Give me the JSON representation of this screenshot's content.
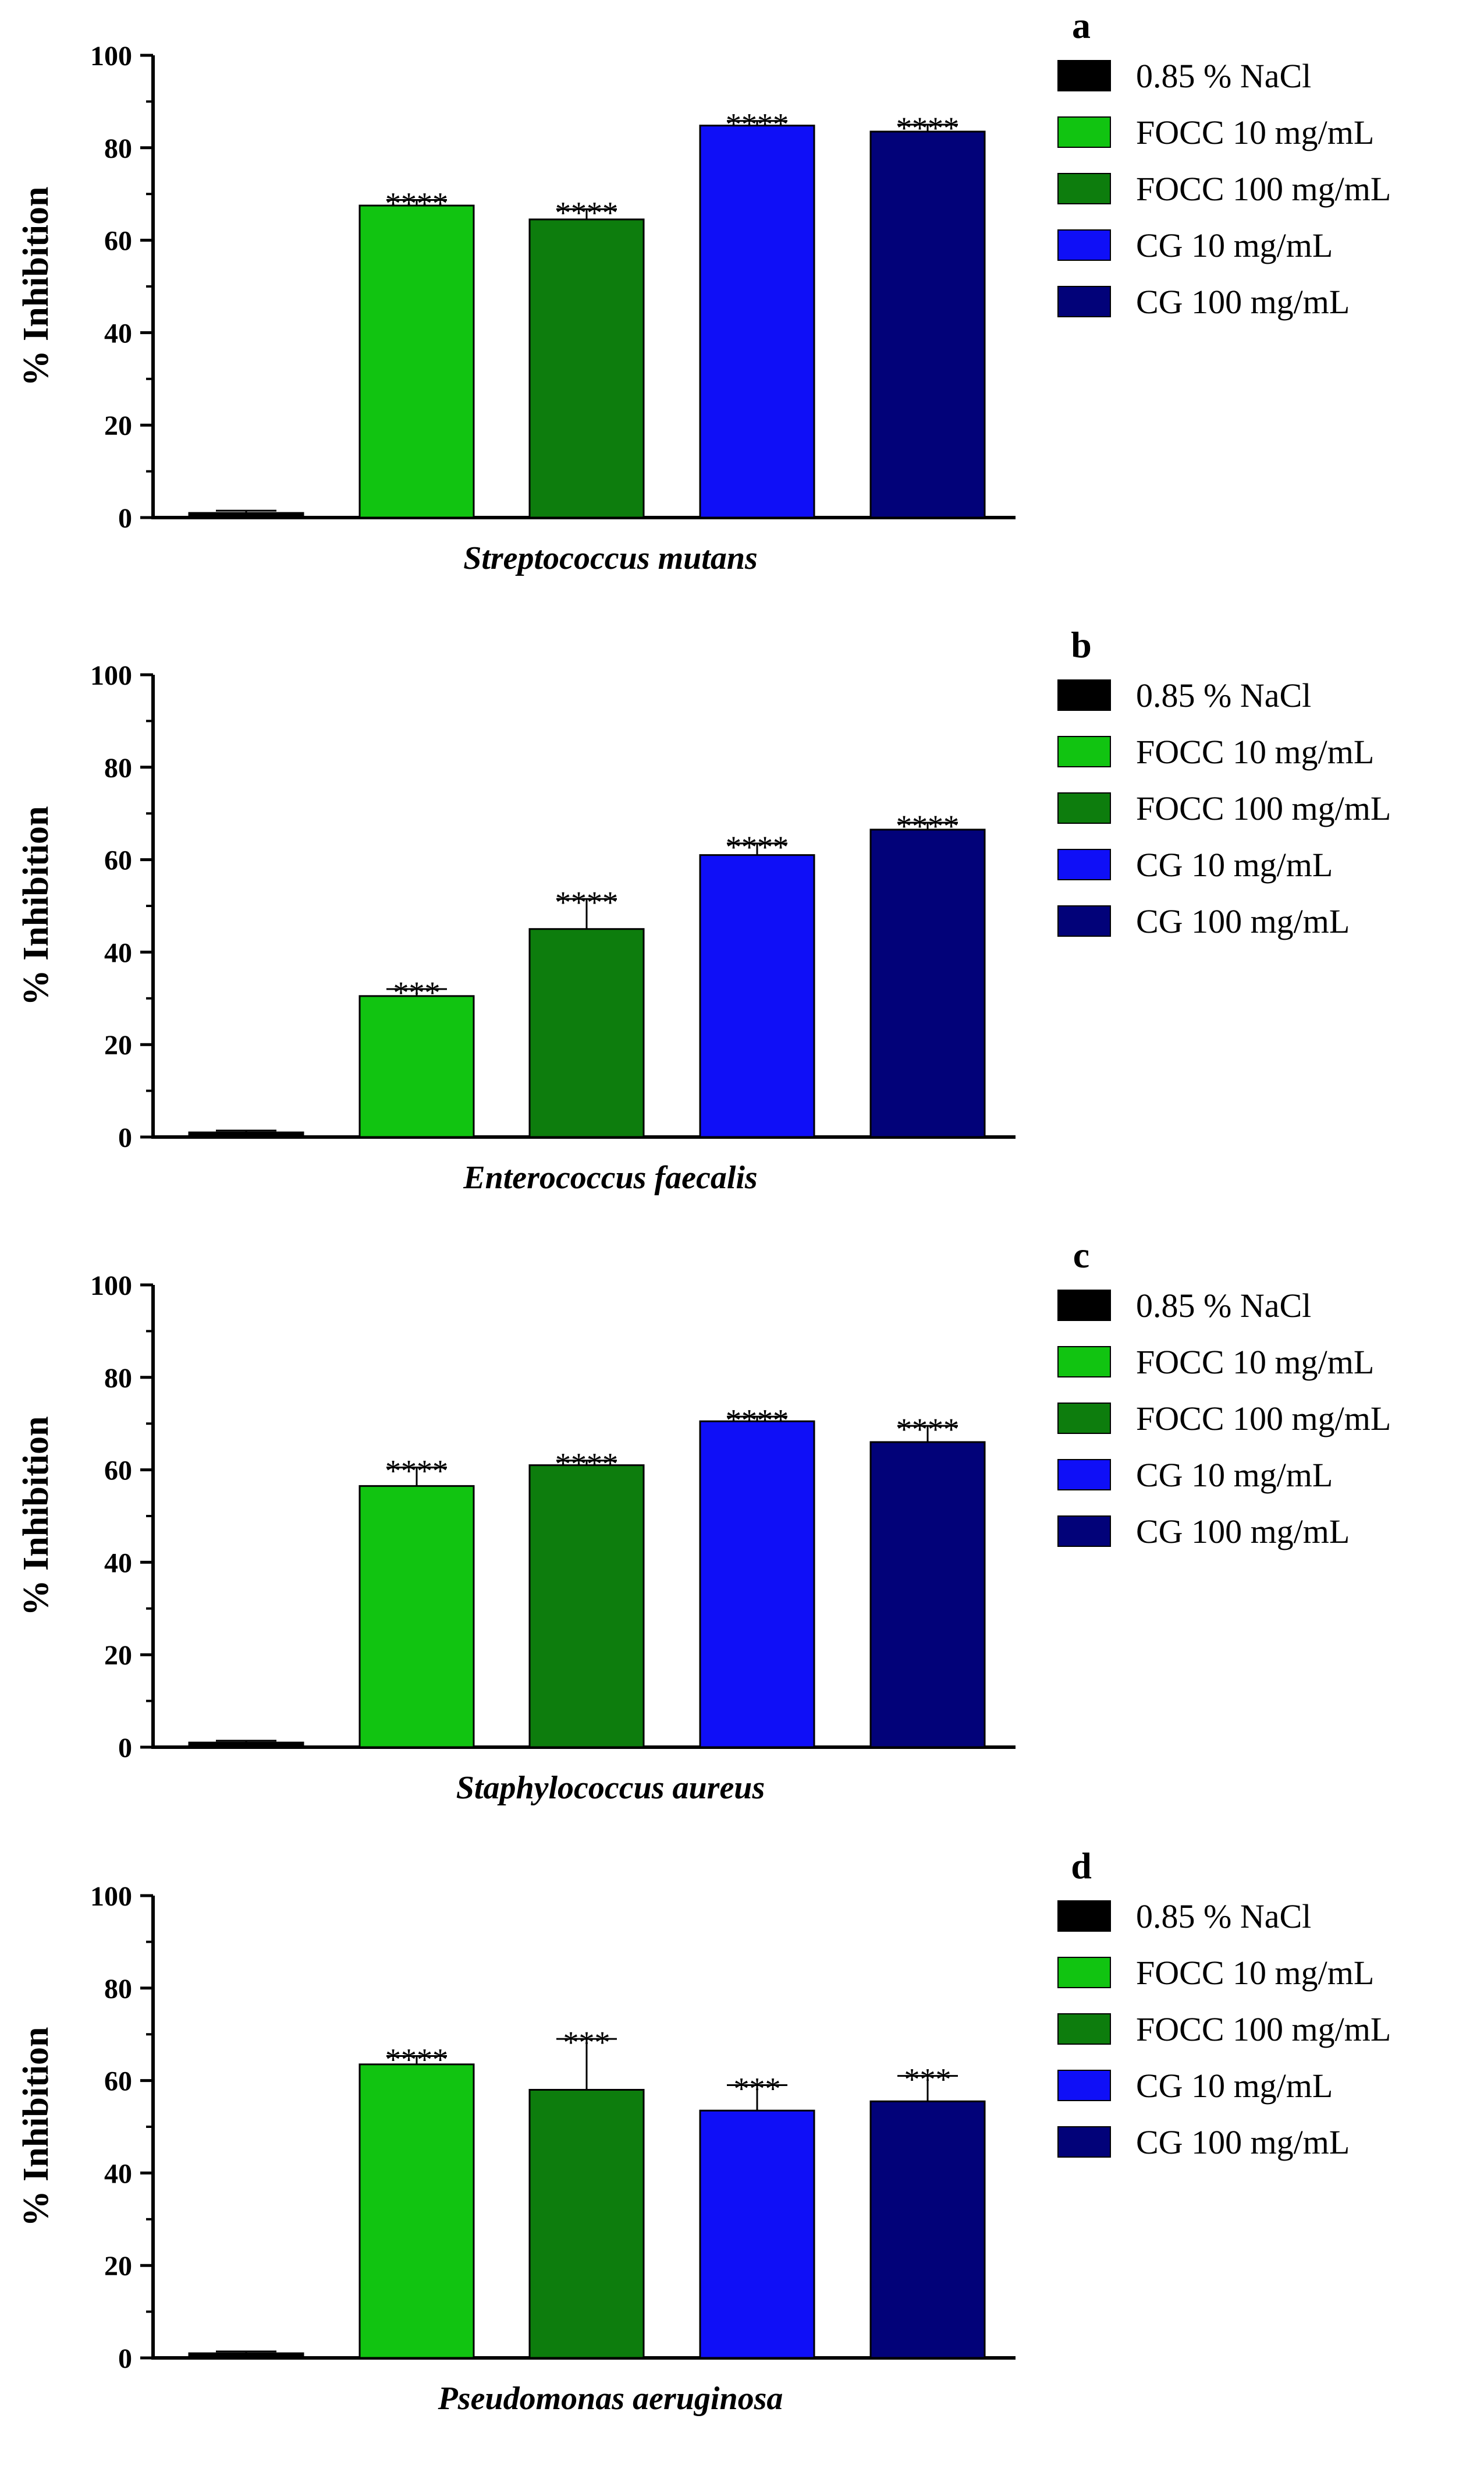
{
  "figure": {
    "legend": [
      {
        "label": "0.85 % NaCl",
        "color": "#000000"
      },
      {
        "label": "FOCC 10 mg/mL",
        "color": "#11c411"
      },
      {
        "label": "FOCC 100 mg/mL",
        "color": "#0d7d0d"
      },
      {
        "label": "CG 10 mg/mL",
        "color": "#0f0ff7"
      },
      {
        "label": "CG 100 mg/mL",
        "color": "#020279"
      }
    ]
  },
  "chart_data": [
    {
      "panel": "a",
      "type": "bar",
      "title": "",
      "categories": [
        "0.85 % NaCl",
        "FOCC 10 mg/mL",
        "FOCC 100 mg/mL",
        "CG 10 mg/mL",
        "CG 100 mg/mL"
      ],
      "values": [
        1,
        67.5,
        64.5,
        84.8,
        83.5
      ],
      "errors": [
        0.5,
        1.2,
        2.2,
        1.0,
        1.5
      ],
      "significance": [
        "",
        "****",
        "****",
        "****",
        "****"
      ],
      "xlabel": "Streptococcus mutans",
      "ylabel": "% Inhibition",
      "ylim": [
        0,
        100
      ],
      "yticks": [
        0,
        20,
        40,
        60,
        80,
        100
      ]
    },
    {
      "panel": "b",
      "type": "bar",
      "title": "",
      "categories": [
        "0.85 % NaCl",
        "FOCC 10 mg/mL",
        "FOCC 100 mg/mL",
        "CG 10 mg/mL",
        "CG 100 mg/mL"
      ],
      "values": [
        1,
        30.5,
        45,
        61,
        66.5
      ],
      "errors": [
        0.4,
        1.5,
        6.5,
        2.5,
        1.5
      ],
      "significance": [
        "",
        "***",
        "****",
        "****",
        "****"
      ],
      "xlabel": "Enterococcus faecalis",
      "ylabel": "% Inhibition",
      "ylim": [
        0,
        100
      ],
      "yticks": [
        0,
        20,
        40,
        60,
        80,
        100
      ]
    },
    {
      "panel": "c",
      "type": "bar",
      "title": "",
      "categories": [
        "0.85 % NaCl",
        "FOCC 10 mg/mL",
        "FOCC 100 mg/mL",
        "CG 10 mg/mL",
        "CG 100 mg/mL"
      ],
      "values": [
        1,
        56.5,
        61,
        70.5,
        66
      ],
      "errors": [
        0.4,
        4.0,
        1.0,
        1.0,
        3.5
      ],
      "significance": [
        "",
        "****",
        "****",
        "****",
        "****"
      ],
      "xlabel": "Staphylococcus aureus",
      "ylabel": "% Inhibition",
      "ylim": [
        0,
        100
      ],
      "yticks": [
        0,
        20,
        40,
        60,
        80,
        100
      ]
    },
    {
      "panel": "d",
      "type": "bar",
      "title": "",
      "categories": [
        "0.85 % NaCl",
        "FOCC 10 mg/mL",
        "FOCC 100 mg/mL",
        "CG 10 mg/mL",
        "CG 100 mg/mL"
      ],
      "values": [
        1,
        63.5,
        58,
        53.5,
        55.5
      ],
      "errors": [
        0.4,
        1.8,
        11.0,
        5.5,
        5.5
      ],
      "significance": [
        "",
        "****",
        "***",
        "***",
        "***"
      ],
      "xlabel": "Pseudomonas aeruginosa",
      "ylabel": "% Inhibition",
      "ylim": [
        0,
        100
      ],
      "yticks": [
        0,
        20,
        40,
        60,
        80,
        100
      ]
    }
  ]
}
